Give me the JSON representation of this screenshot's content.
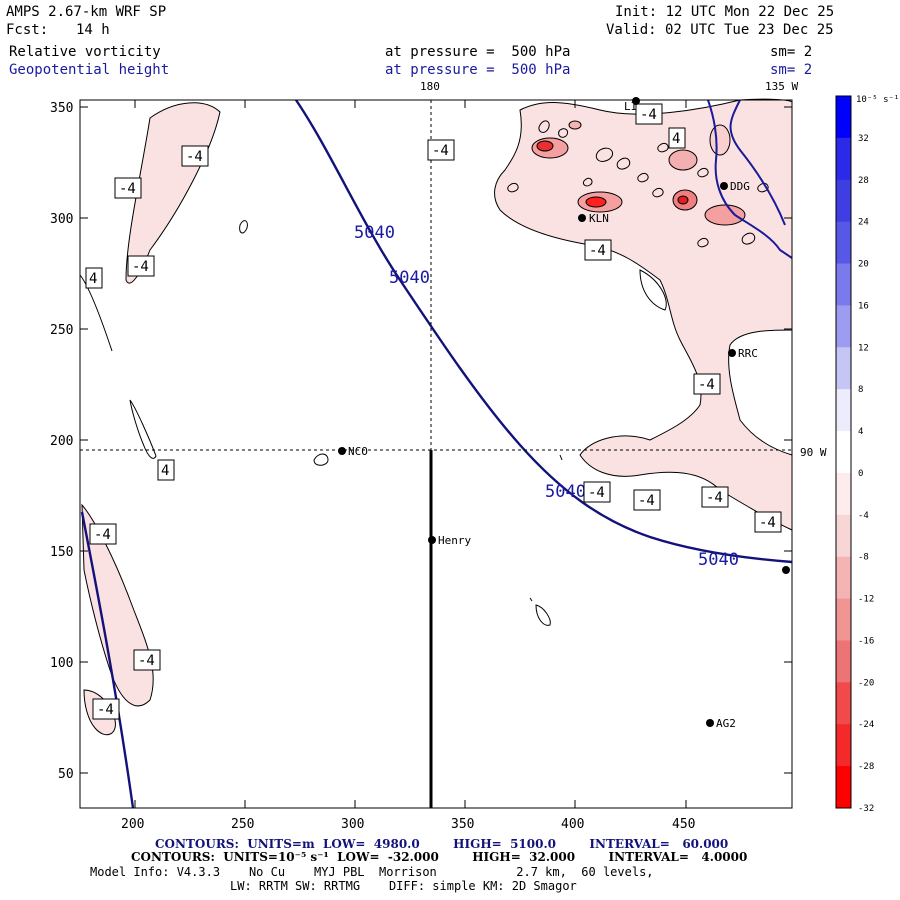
{
  "header": {
    "title": "AMPS 2.67-km WRF SP",
    "fcst_label": "Fcst:",
    "fcst_value": "14 h",
    "init": "Init: 12 UTC Mon 22 Dec 25",
    "valid": "Valid: 02 UTC Tue 23 Dec 25",
    "field1": "Relative vorticity",
    "field1_pressure": "at pressure =  500 hPa",
    "field1_sm": "sm= 2",
    "field2": "Geopotential height",
    "field2_pressure": "at pressure =  500 hPa",
    "field2_sm": "sm= 2"
  },
  "map": {
    "lon_label_180": "180",
    "lon_label_135w": "135 W",
    "lat_label_90w": "90 W",
    "x_ticks": [
      "200",
      "250",
      "300",
      "350",
      "400",
      "450"
    ],
    "y_ticks": [
      "350",
      "300",
      "250",
      "200",
      "150",
      "100",
      "50"
    ],
    "stations": [
      {
        "id": "NCO",
        "label": "NCO"
      },
      {
        "id": "Henry",
        "label": "Henry"
      },
      {
        "id": "KLN",
        "label": "KLN"
      },
      {
        "id": "RRC",
        "label": "RRC"
      },
      {
        "id": "AG2",
        "label": "AG2"
      },
      {
        "id": "DDG",
        "label": "DDG"
      },
      {
        "id": "LI",
        "label": "LI"
      }
    ],
    "height_contour_label": "5040",
    "vort_labels": [
      "-4",
      "-4",
      "-4",
      "-4",
      "4",
      "-4",
      "-4",
      "-4",
      "-4",
      "-4",
      "-4",
      "-4",
      "4",
      "4",
      "-4",
      "-4",
      "-4"
    ]
  },
  "colorbar": {
    "unit": "10⁻⁵ s⁻¹",
    "ticks": [
      "32",
      "28",
      "24",
      "20",
      "16",
      "12",
      "8",
      "4",
      "0",
      "-4",
      "-8",
      "-12",
      "-16",
      "-20",
      "-24",
      "-28",
      "-32"
    ],
    "colors": [
      "#0000ff",
      "#2a2ae8",
      "#3e3ee2",
      "#5858e6",
      "#7a7aec",
      "#9c9cf0",
      "#c6c6f6",
      "#ececfc",
      "#ffffff",
      "#fcecec",
      "#f8d6d6",
      "#f4b4b4",
      "#f09494",
      "#ec7474",
      "#f04a4a",
      "#f42a2a",
      "#ff0000"
    ]
  },
  "footer": {
    "line1": "CONTOURS:  UNITS=m  LOW=  4980.0        HIGH=  5100.0        INTERVAL=   60.000",
    "line2": "CONTOURS:  UNITS=10⁻⁵ s⁻¹  LOW=  -32.000        HIGH=  32.000        INTERVAL=   4.0000",
    "line3": "Model Info: V4.3.3    No Cu    MYJ PBL  Morrison           2.7 km,  60 levels,",
    "line4": "LW: RRTM SW: RRTMG    DIFF: simple KM: 2D Smagor"
  }
}
